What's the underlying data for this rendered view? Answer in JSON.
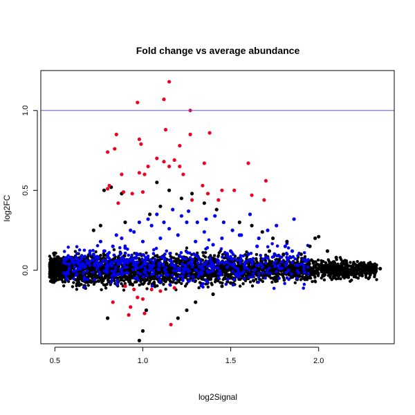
{
  "chart_data": {
    "type": "scatter",
    "title": "Fold change vs average abundance",
    "xlabel": "log2Signal",
    "ylabel": "log2FC",
    "xlim": [
      0.42,
      2.43
    ],
    "ylim": [
      -0.46,
      1.25
    ],
    "xticks": [
      0.5,
      1.0,
      1.5,
      2.0
    ],
    "yticks": [
      0.0,
      0.5,
      1.0
    ],
    "xtick_labels": [
      "0.5",
      "1.0",
      "1.5",
      "2.0"
    ],
    "ytick_labels": [
      "0.0",
      "0.5",
      "1.0"
    ],
    "reference_line": {
      "y": 1.0,
      "color": "#5555ee"
    },
    "grid": false,
    "legend": "none",
    "colors": {
      "black": "#000000",
      "blue": "#0000ee",
      "red": "#ee0022"
    },
    "series": [
      {
        "color": "red",
        "x": [
          1.15,
          1.12,
          0.97,
          1.27,
          1.13,
          0.98,
          1.38,
          0.85,
          1.27,
          1.21,
          0.8,
          0.99,
          0.84,
          1.08,
          1.18,
          1.12,
          1.35,
          1.6,
          0.88,
          1.21,
          1.15,
          1.03,
          0.98,
          1.01,
          1.23,
          1.34,
          0.81,
          1.52,
          0.89,
          1.45,
          1.7,
          1.69,
          1.62,
          1.37,
          0.94,
          1.0,
          1.28,
          1.43,
          0.86,
          0.8,
          0.9,
          0.95,
          1.05,
          1.18,
          1.1,
          1.0,
          0.83,
          0.92,
          1.16,
          1.01,
          0.93,
          0.97
        ],
        "y": [
          1.18,
          1.07,
          1.05,
          1.0,
          0.88,
          0.82,
          0.86,
          0.85,
          0.85,
          0.78,
          0.74,
          0.79,
          0.76,
          0.7,
          0.69,
          0.68,
          0.67,
          0.67,
          0.6,
          0.65,
          0.65,
          0.65,
          0.61,
          0.6,
          0.6,
          0.53,
          0.53,
          0.5,
          0.49,
          0.5,
          0.56,
          0.44,
          0.47,
          0.48,
          0.48,
          0.49,
          0.44,
          0.44,
          0.42,
          0.51,
          -0.1,
          -0.12,
          -0.12,
          -0.11,
          -0.13,
          -0.18,
          -0.2,
          -0.28,
          -0.34,
          -0.27,
          -0.23,
          -0.17
        ]
      },
      {
        "color": "blue",
        "x": [
          0.6,
          0.65,
          0.72,
          0.78,
          0.83,
          0.88,
          0.93,
          0.98,
          1.03,
          1.08,
          1.12,
          1.17,
          1.22,
          1.26,
          1.31,
          1.36,
          1.41,
          1.46,
          1.51,
          1.56,
          1.61,
          1.66,
          1.71,
          1.76,
          1.81,
          1.86,
          0.62,
          0.7,
          0.76,
          0.85,
          0.95,
          1.05,
          1.15,
          1.25,
          1.35,
          1.45,
          1.55,
          1.65,
          1.75,
          1.85,
          0.58,
          0.68,
          0.8,
          0.9,
          1.0,
          1.1,
          1.2,
          1.3,
          1.4,
          1.5,
          1.6,
          1.7,
          0.74,
          0.86,
          0.96,
          1.06,
          1.16,
          1.28,
          1.38,
          1.48,
          1.58,
          1.68,
          1.78,
          1.88
        ],
        "y": [
          0.05,
          0.07,
          0.1,
          0.12,
          0.15,
          0.2,
          0.25,
          0.3,
          0.32,
          0.35,
          0.3,
          0.38,
          0.34,
          0.37,
          0.3,
          0.32,
          0.34,
          0.3,
          0.25,
          0.22,
          0.35,
          0.2,
          0.25,
          0.28,
          0.15,
          0.32,
          0.08,
          0.12,
          0.18,
          0.22,
          0.24,
          0.28,
          0.26,
          0.3,
          0.24,
          0.2,
          0.22,
          0.15,
          0.1,
          0.12,
          0.04,
          0.06,
          0.1,
          0.14,
          0.18,
          0.2,
          0.22,
          0.18,
          0.16,
          0.12,
          0.1,
          0.08,
          0.02,
          0.04,
          0.03,
          0.05,
          0.06,
          0.04,
          0.03,
          0.02,
          0.04,
          0.02,
          0.01,
          0.03
        ]
      },
      {
        "color": "black",
        "x": [
          0.98,
          1.0,
          1.2,
          1.25,
          1.3,
          1.4,
          1.45,
          1.5,
          1.72,
          1.8,
          1.95,
          1.98,
          2.0,
          2.05,
          2.1,
          2.15,
          2.2,
          2.25,
          2.3,
          2.35,
          0.78,
          0.82,
          0.88,
          1.08,
          1.15,
          1.28,
          0.8,
          1.02,
          0.72,
          0.76,
          0.9,
          1.04,
          1.1,
          1.22,
          1.35,
          1.42,
          1.55,
          1.62,
          1.68,
          1.74,
          1.82,
          1.9
        ],
        "y": [
          -0.44,
          -0.38,
          -0.3,
          -0.25,
          -0.2,
          -0.15,
          -0.1,
          -0.08,
          0.12,
          0.1,
          0.15,
          0.2,
          0.21,
          0.12,
          0.08,
          0.06,
          0.04,
          0.03,
          0.02,
          0.01,
          0.5,
          0.52,
          0.48,
          0.55,
          0.5,
          0.48,
          -0.3,
          -0.25,
          0.25,
          0.28,
          0.3,
          0.35,
          0.4,
          0.45,
          0.42,
          0.38,
          0.3,
          0.28,
          0.24,
          0.2,
          0.18,
          0.1
        ]
      }
    ]
  }
}
